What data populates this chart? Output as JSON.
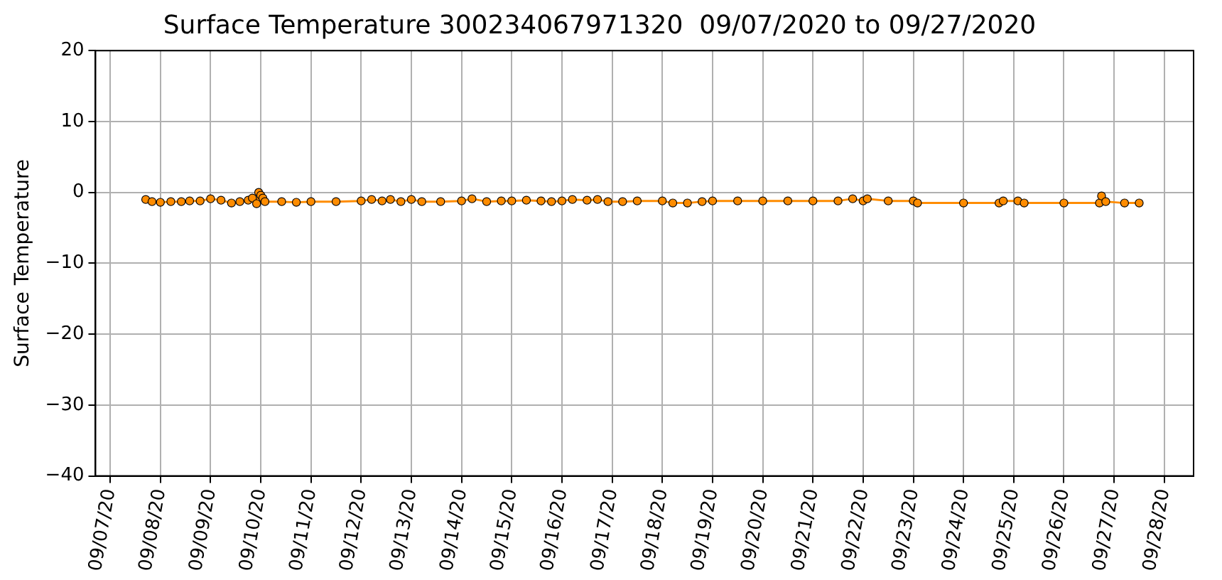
{
  "chart_data": {
    "type": "line",
    "title": "Surface Temperature 300234067971320  09/07/2020 to 09/27/2020",
    "ylabel": "Surface Temperature",
    "x": [
      "2020-09-07T17:00",
      "2020-09-07T20:00",
      "2020-09-08T00:00",
      "2020-09-08T05:00",
      "2020-09-08T10:00",
      "2020-09-08T14:00",
      "2020-09-08T19:00",
      "2020-09-09T00:00",
      "2020-09-09T05:00",
      "2020-09-09T10:00",
      "2020-09-09T14:00",
      "2020-09-09T18:00",
      "2020-09-09T20:00",
      "2020-09-09T22:00",
      "2020-09-09T23:00",
      "2020-09-10T00:00",
      "2020-09-10T01:00",
      "2020-09-10T02:00",
      "2020-09-10T10:00",
      "2020-09-10T17:00",
      "2020-09-11T00:00",
      "2020-09-11T12:00",
      "2020-09-12T00:00",
      "2020-09-12T05:00",
      "2020-09-12T10:00",
      "2020-09-12T14:00",
      "2020-09-12T19:00",
      "2020-09-13T00:00",
      "2020-09-13T05:00",
      "2020-09-13T14:00",
      "2020-09-14T00:00",
      "2020-09-14T05:00",
      "2020-09-14T12:00",
      "2020-09-14T19:00",
      "2020-09-15T00:00",
      "2020-09-15T07:00",
      "2020-09-15T14:00",
      "2020-09-15T19:00",
      "2020-09-16T00:00",
      "2020-09-16T05:00",
      "2020-09-16T12:00",
      "2020-09-16T17:00",
      "2020-09-16T22:00",
      "2020-09-17T05:00",
      "2020-09-17T12:00",
      "2020-09-18T00:00",
      "2020-09-18T05:00",
      "2020-09-18T12:00",
      "2020-09-18T19:00",
      "2020-09-19T00:00",
      "2020-09-19T12:00",
      "2020-09-20T00:00",
      "2020-09-20T12:00",
      "2020-09-21T00:00",
      "2020-09-21T12:00",
      "2020-09-21T19:00",
      "2020-09-22T00:00",
      "2020-09-22T02:00",
      "2020-09-22T12:00",
      "2020-09-23T00:00",
      "2020-09-23T02:00",
      "2020-09-24T00:00",
      "2020-09-24T17:00",
      "2020-09-24T19:00",
      "2020-09-25T02:00",
      "2020-09-25T05:00",
      "2020-09-26T00:00",
      "2020-09-26T17:00",
      "2020-09-26T18:00",
      "2020-09-26T20:00",
      "2020-09-27T05:00",
      "2020-09-27T12:00"
    ],
    "series": [
      {
        "color": "#ff8c00",
        "values": [
          -1.0,
          -1.3,
          -1.4,
          -1.3,
          -1.3,
          -1.2,
          -1.2,
          -0.9,
          -1.1,
          -1.5,
          -1.3,
          -1.1,
          -0.8,
          -1.6,
          0.0,
          -0.4,
          -0.8,
          -1.3,
          -1.3,
          -1.4,
          -1.3,
          -1.3,
          -1.2,
          -1.0,
          -1.2,
          -1.0,
          -1.3,
          -1.0,
          -1.3,
          -1.3,
          -1.2,
          -0.9,
          -1.3,
          -1.2,
          -1.2,
          -1.1,
          -1.2,
          -1.3,
          -1.2,
          -1.0,
          -1.1,
          -1.0,
          -1.3,
          -1.3,
          -1.2,
          -1.2,
          -1.5,
          -1.5,
          -1.3,
          -1.2,
          -1.2,
          -1.2,
          -1.2,
          -1.2,
          -1.2,
          -0.9,
          -1.2,
          -0.9,
          -1.2,
          -1.2,
          -1.5,
          -1.5,
          -1.5,
          -1.2,
          -1.2,
          -1.5,
          -1.5,
          -1.5,
          -0.5,
          -1.3,
          -1.5,
          -1.5
        ]
      }
    ],
    "xlim": [
      "2020-09-06T17:00",
      "2020-09-28T14:00"
    ],
    "xticks": [
      {
        "value": "2020-09-07",
        "label": "09/07/20"
      },
      {
        "value": "2020-09-08",
        "label": "09/08/20"
      },
      {
        "value": "2020-09-09",
        "label": "09/09/20"
      },
      {
        "value": "2020-09-10",
        "label": "09/10/20"
      },
      {
        "value": "2020-09-11",
        "label": "09/11/20"
      },
      {
        "value": "2020-09-12",
        "label": "09/12/20"
      },
      {
        "value": "2020-09-13",
        "label": "09/13/20"
      },
      {
        "value": "2020-09-14",
        "label": "09/14/20"
      },
      {
        "value": "2020-09-15",
        "label": "09/15/20"
      },
      {
        "value": "2020-09-16",
        "label": "09/16/20"
      },
      {
        "value": "2020-09-17",
        "label": "09/17/20"
      },
      {
        "value": "2020-09-18",
        "label": "09/18/20"
      },
      {
        "value": "2020-09-19",
        "label": "09/19/20"
      },
      {
        "value": "2020-09-20",
        "label": "09/20/20"
      },
      {
        "value": "2020-09-21",
        "label": "09/21/20"
      },
      {
        "value": "2020-09-22",
        "label": "09/22/20"
      },
      {
        "value": "2020-09-23",
        "label": "09/23/20"
      },
      {
        "value": "2020-09-24",
        "label": "09/24/20"
      },
      {
        "value": "2020-09-25",
        "label": "09/25/20"
      },
      {
        "value": "2020-09-26",
        "label": "09/26/20"
      },
      {
        "value": "2020-09-27",
        "label": "09/27/20"
      },
      {
        "value": "2020-09-28",
        "label": "09/28/20"
      }
    ],
    "ylim": [
      -40,
      20
    ],
    "yticks": [
      -40,
      -30,
      -20,
      -10,
      0,
      10,
      20
    ],
    "grid": true,
    "marker": "circle",
    "line_style": "solid"
  }
}
